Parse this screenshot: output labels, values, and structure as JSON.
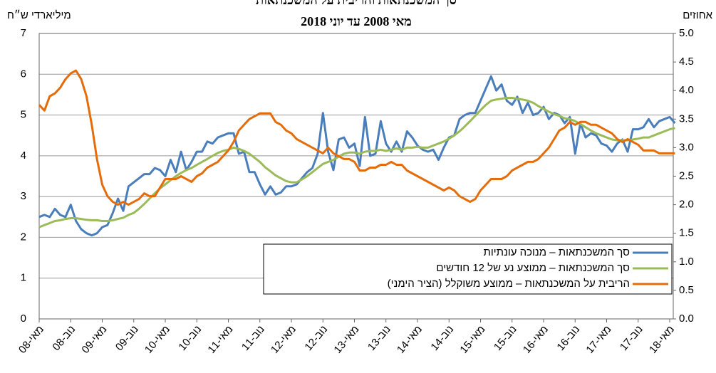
{
  "chart_data": {
    "type": "line",
    "title": "סך המשכנתאות והריבית על המשכנתאות",
    "subtitle": "מאי 2008 עד יוני 2018",
    "y_label": "מיליארדי ש״ח",
    "y2_label": "אחוזים",
    "categories": [
      "מאי-08",
      null,
      null,
      null,
      null,
      null,
      "נוב-08",
      null,
      null,
      null,
      null,
      null,
      "מאי-09",
      null,
      null,
      null,
      null,
      null,
      "נוב-09",
      null,
      null,
      null,
      null,
      null,
      "מאי-10",
      null,
      null,
      null,
      null,
      null,
      "נוב-10",
      null,
      null,
      null,
      null,
      null,
      "מאי-11",
      null,
      null,
      null,
      null,
      null,
      "נוב-11",
      null,
      null,
      null,
      null,
      null,
      "מאי-12",
      null,
      null,
      null,
      null,
      null,
      "נוב-12",
      null,
      null,
      null,
      null,
      null,
      "מאי-13",
      null,
      null,
      null,
      null,
      null,
      "נוב-13",
      null,
      null,
      null,
      null,
      null,
      "מאי-14",
      null,
      null,
      null,
      null,
      null,
      "נוב-14",
      null,
      null,
      null,
      null,
      null,
      "מאי-15",
      null,
      null,
      null,
      null,
      null,
      "נוב-15",
      null,
      null,
      null,
      null,
      null,
      "מאי-16",
      null,
      null,
      null,
      null,
      null,
      "נוב-16",
      null,
      null,
      null,
      null,
      null,
      "מאי-17",
      null,
      null,
      null,
      null,
      null,
      "נוב-17",
      null,
      null,
      null,
      null,
      null,
      "מאי-18",
      null
    ],
    "series": [
      {
        "name": "סך המשכנתאות – מנוכה עונתיות",
        "color": "#4a7ebb",
        "axis": "y",
        "values": [
          2.5,
          2.55,
          2.5,
          2.7,
          2.55,
          2.5,
          2.8,
          2.4,
          2.2,
          2.1,
          2.05,
          2.1,
          2.25,
          2.3,
          2.6,
          2.95,
          2.65,
          3.25,
          3.35,
          3.45,
          3.55,
          3.55,
          3.7,
          3.65,
          3.5,
          3.9,
          3.6,
          4.1,
          3.65,
          3.85,
          4.1,
          4.1,
          4.35,
          4.3,
          4.45,
          4.5,
          4.55,
          4.55,
          4.05,
          4.1,
          3.6,
          3.6,
          3.3,
          3.05,
          3.25,
          3.05,
          3.1,
          3.25,
          3.25,
          3.3,
          3.45,
          3.6,
          3.7,
          4.05,
          5.05,
          4.1,
          3.65,
          4.4,
          4.45,
          4.2,
          4.3,
          3.75,
          4.95,
          4.0,
          4.05,
          4.85,
          4.3,
          4.1,
          4.35,
          4.1,
          4.6,
          4.45,
          4.25,
          4.15,
          4.1,
          4.15,
          3.9,
          4.2,
          4.45,
          4.5,
          4.9,
          5.0,
          5.05,
          5.05,
          5.35,
          5.65,
          5.95,
          5.6,
          5.75,
          5.35,
          5.25,
          5.45,
          5.05,
          5.3,
          5.0,
          5.05,
          5.2,
          4.9,
          5.05,
          5.0,
          4.8,
          4.95,
          4.05,
          4.8,
          4.45,
          4.55,
          4.5,
          4.3,
          4.25,
          4.1,
          4.3,
          4.4,
          4.1,
          4.65,
          4.65,
          4.7,
          4.9,
          4.7,
          4.85,
          4.9,
          4.95,
          4.8
        ]
      },
      {
        "name": "סך המשכנתאות – ממוצע נע של 12 חודשים",
        "color": "#9bbb59",
        "axis": "y",
        "values": [
          2.25,
          2.3,
          2.35,
          2.4,
          2.42,
          2.45,
          2.47,
          2.47,
          2.45,
          2.43,
          2.42,
          2.42,
          2.4,
          2.4,
          2.42,
          2.45,
          2.48,
          2.55,
          2.6,
          2.7,
          2.82,
          2.95,
          3.08,
          3.2,
          3.3,
          3.4,
          3.5,
          3.58,
          3.65,
          3.7,
          3.78,
          3.85,
          3.92,
          4.0,
          4.07,
          4.12,
          4.15,
          4.2,
          4.17,
          4.12,
          4.05,
          3.95,
          3.85,
          3.72,
          3.62,
          3.52,
          3.45,
          3.38,
          3.35,
          3.35,
          3.42,
          3.5,
          3.6,
          3.7,
          3.8,
          3.85,
          3.9,
          3.98,
          4.05,
          4.08,
          4.08,
          4.05,
          4.1,
          4.12,
          4.12,
          4.15,
          4.12,
          4.15,
          4.18,
          4.15,
          4.2,
          4.2,
          4.22,
          4.2,
          4.2,
          4.25,
          4.3,
          4.35,
          4.42,
          4.5,
          4.6,
          4.72,
          4.85,
          4.98,
          5.12,
          5.25,
          5.35,
          5.38,
          5.4,
          5.42,
          5.42,
          5.4,
          5.38,
          5.35,
          5.3,
          5.22,
          5.15,
          5.08,
          5.02,
          4.98,
          4.92,
          4.9,
          4.85,
          4.78,
          4.7,
          4.62,
          4.55,
          4.5,
          4.45,
          4.4,
          4.38,
          4.38,
          4.38,
          4.4,
          4.42,
          4.45,
          4.45,
          4.5,
          4.55,
          4.6,
          4.65,
          4.68
        ]
      },
      {
        "name": "הריבית על המשכנתאות – ממוצע משוקלל (הציר הימני)",
        "color": "#e46c0a",
        "axis": "y2",
        "values": [
          3.75,
          3.65,
          3.9,
          3.95,
          4.05,
          4.2,
          4.3,
          4.35,
          4.2,
          3.9,
          3.4,
          2.8,
          2.35,
          2.15,
          2.05,
          2.0,
          2.05,
          2.0,
          2.05,
          2.1,
          2.2,
          2.15,
          2.15,
          2.3,
          2.45,
          2.45,
          2.45,
          2.5,
          2.45,
          2.4,
          2.5,
          2.55,
          2.65,
          2.7,
          2.75,
          2.85,
          2.95,
          3.1,
          3.3,
          3.4,
          3.5,
          3.55,
          3.6,
          3.6,
          3.6,
          3.45,
          3.4,
          3.3,
          3.25,
          3.15,
          3.1,
          3.05,
          3.0,
          2.95,
          2.9,
          3.0,
          2.9,
          2.85,
          2.8,
          2.8,
          2.75,
          2.6,
          2.6,
          2.65,
          2.65,
          2.7,
          2.7,
          2.75,
          2.7,
          2.7,
          2.6,
          2.55,
          2.5,
          2.45,
          2.4,
          2.35,
          2.3,
          2.25,
          2.3,
          2.25,
          2.15,
          2.1,
          2.05,
          2.1,
          2.25,
          2.35,
          2.45,
          2.45,
          2.45,
          2.5,
          2.6,
          2.65,
          2.7,
          2.75,
          2.75,
          2.8,
          2.9,
          3.0,
          3.15,
          3.3,
          3.35,
          3.45,
          3.4,
          3.45,
          3.45,
          3.4,
          3.4,
          3.35,
          3.3,
          3.25,
          3.15,
          3.1,
          3.15,
          3.1,
          3.05,
          2.95,
          2.95,
          2.95,
          2.9,
          2.9,
          2.9,
          2.9
        ]
      }
    ],
    "ylim": [
      0,
      7
    ],
    "yticks": [
      0,
      1,
      2,
      3,
      4,
      5,
      6,
      7
    ],
    "y2lim": [
      0,
      5
    ],
    "y2ticks": [
      {
        "value": 0,
        "label": "0.0"
      },
      {
        "value": 0.5,
        "label": "0.5"
      },
      {
        "value": 1,
        "label": "1.0"
      },
      {
        "value": 1.5,
        "label": "1.5"
      },
      {
        "value": 2,
        "label": "2.0"
      },
      {
        "value": 2.5,
        "label": "2.5"
      },
      {
        "value": 3,
        "label": "3.0"
      },
      {
        "value": 3.5,
        "label": "3.5"
      },
      {
        "value": 4,
        "label": "4.0"
      },
      {
        "value": 4.5,
        "label": "4.5"
      },
      {
        "value": 5,
        "label": "5.0"
      }
    ],
    "grid": true,
    "legend": "lower right"
  }
}
